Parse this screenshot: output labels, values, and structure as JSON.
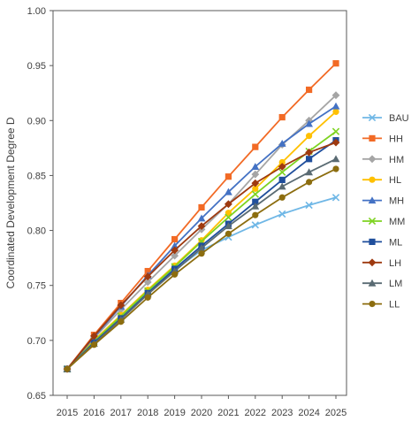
{
  "chart_data": {
    "type": "line",
    "title": "",
    "xlabel": "",
    "ylabel": "Coordinated Development Degree D",
    "x": [
      "2015",
      "2016",
      "2017",
      "2018",
      "2019",
      "2020",
      "2021",
      "2022",
      "2023",
      "2024",
      "2025"
    ],
    "ylim": [
      0.65,
      1.0
    ],
    "yticks": [
      "0.65",
      "0.70",
      "0.75",
      "0.80",
      "0.85",
      "0.90",
      "0.95",
      "1.00"
    ],
    "grid": false,
    "legend_position": "right",
    "series": [
      {
        "name": "BAU",
        "color": "#6fb7e6",
        "marker": "x",
        "values": [
          0.674,
          0.7,
          0.722,
          0.744,
          0.764,
          0.782,
          0.794,
          0.805,
          0.815,
          0.823,
          0.83
        ]
      },
      {
        "name": "HH",
        "color": "#f26a25",
        "marker": "square",
        "values": [
          0.674,
          0.705,
          0.734,
          0.763,
          0.792,
          0.821,
          0.849,
          0.876,
          0.903,
          0.928,
          0.952
        ]
      },
      {
        "name": "HM",
        "color": "#a5a5a5",
        "marker": "diamond",
        "values": [
          0.674,
          0.702,
          0.728,
          0.753,
          0.777,
          0.801,
          0.824,
          0.851,
          0.878,
          0.9,
          0.923
        ]
      },
      {
        "name": "HL",
        "color": "#ffc000",
        "marker": "circle",
        "values": [
          0.674,
          0.7,
          0.723,
          0.746,
          0.768,
          0.791,
          0.816,
          0.838,
          0.862,
          0.886,
          0.908
        ]
      },
      {
        "name": "MH",
        "color": "#4472c4",
        "marker": "triangle",
        "values": [
          0.674,
          0.703,
          0.731,
          0.759,
          0.786,
          0.811,
          0.835,
          0.858,
          0.879,
          0.897,
          0.913
        ]
      },
      {
        "name": "MM",
        "color": "#7ed321",
        "marker": "x",
        "values": [
          0.674,
          0.699,
          0.722,
          0.745,
          0.767,
          0.79,
          0.812,
          0.833,
          0.853,
          0.872,
          0.89
        ]
      },
      {
        "name": "ML",
        "color": "#1f4e9c",
        "marker": "square",
        "values": [
          0.674,
          0.698,
          0.72,
          0.743,
          0.765,
          0.786,
          0.806,
          0.826,
          0.846,
          0.865,
          0.882
        ]
      },
      {
        "name": "LH",
        "color": "#9e3a10",
        "marker": "diamond",
        "values": [
          0.674,
          0.704,
          0.732,
          0.758,
          0.782,
          0.804,
          0.824,
          0.843,
          0.858,
          0.871,
          0.88
        ]
      },
      {
        "name": "LM",
        "color": "#5a6b73",
        "marker": "triangle",
        "values": [
          0.674,
          0.697,
          0.719,
          0.742,
          0.763,
          0.784,
          0.804,
          0.822,
          0.84,
          0.853,
          0.865
        ]
      },
      {
        "name": "LL",
        "color": "#8c6d0f",
        "marker": "circle",
        "values": [
          0.674,
          0.696,
          0.717,
          0.739,
          0.76,
          0.779,
          0.797,
          0.814,
          0.83,
          0.844,
          0.856
        ]
      }
    ]
  }
}
